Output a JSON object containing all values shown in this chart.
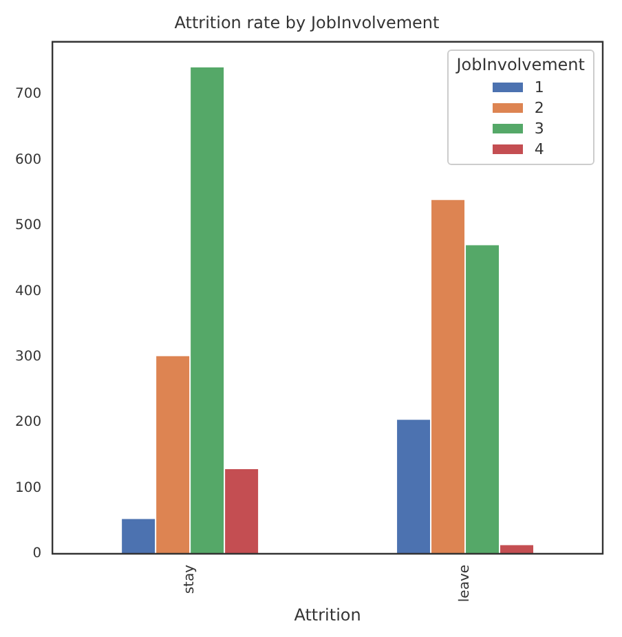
{
  "chart_data": {
    "type": "bar",
    "title": "Attrition rate by JobInvolvement",
    "xlabel": "Attrition",
    "legend_title": "JobInvolvement",
    "categories": [
      "stay",
      "leave"
    ],
    "series": [
      {
        "name": "1",
        "color": "#4c72b0",
        "values": [
          54,
          205
        ]
      },
      {
        "name": "2",
        "color": "#dd8452",
        "values": [
          302,
          540
        ]
      },
      {
        "name": "3",
        "color": "#55a868",
        "values": [
          742,
          471
        ]
      },
      {
        "name": "4",
        "color": "#c44e52",
        "values": [
          130,
          14
        ]
      }
    ],
    "ylim": [
      0,
      780
    ],
    "yticks": [
      0,
      100,
      200,
      300,
      400,
      500,
      600,
      700
    ],
    "grid": false,
    "legend": "top right"
  }
}
